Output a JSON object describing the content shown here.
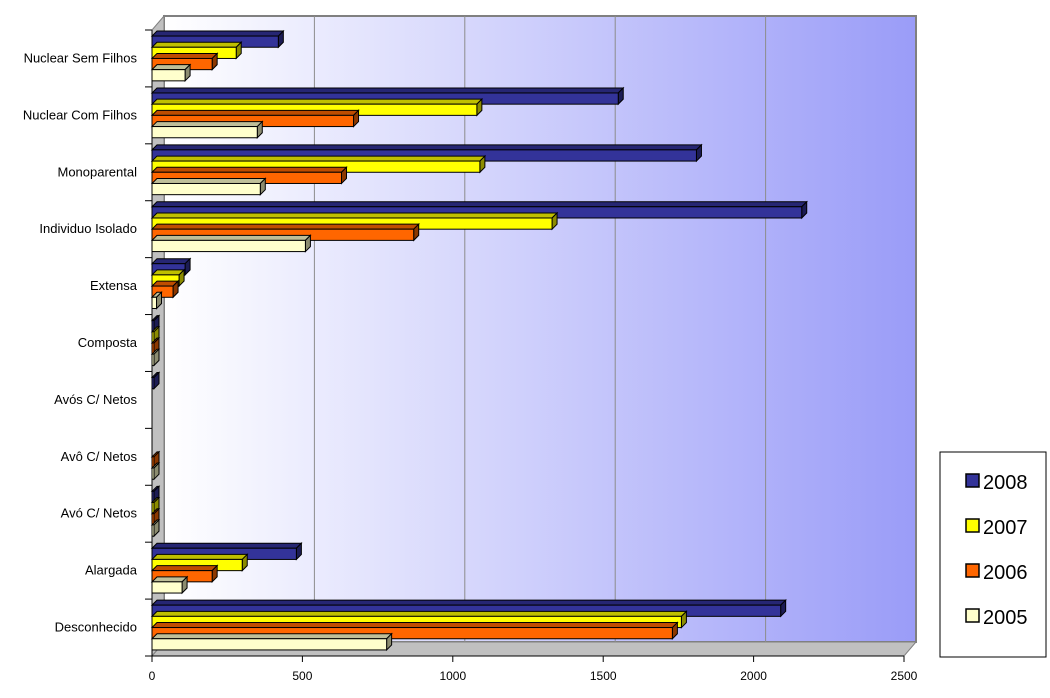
{
  "chart_data": {
    "type": "bar",
    "orientation": "horizontal",
    "style": "3d",
    "categories": [
      "Nuclear Sem Filhos",
      "Nuclear Com Filhos",
      "Monoparental",
      "Individuo Isolado",
      "Extensa",
      "Composta",
      "Avós C/ Netos",
      "Avô C/ Netos",
      "Avó C/ Netos",
      "Alargada",
      "Desconhecido"
    ],
    "series": [
      {
        "name": "2008",
        "color": "#333399",
        "values": [
          420,
          1550,
          1810,
          2160,
          110,
          5,
          5,
          0,
          5,
          480,
          2090
        ]
      },
      {
        "name": "2007",
        "color": "#FFFF00",
        "values": [
          280,
          1080,
          1090,
          1330,
          90,
          5,
          0,
          0,
          5,
          300,
          1760
        ]
      },
      {
        "name": "2006",
        "color": "#FF6600",
        "values": [
          200,
          670,
          630,
          870,
          70,
          5,
          0,
          5,
          5,
          200,
          1730
        ]
      },
      {
        "name": "2005",
        "color": "#FFFFCC",
        "values": [
          110,
          350,
          360,
          510,
          15,
          5,
          0,
          5,
          5,
          100,
          780
        ]
      }
    ],
    "xlim": [
      0,
      2500
    ],
    "xticks": [
      "0",
      "500",
      "1000",
      "1500",
      "2000",
      "2500"
    ],
    "grid": true,
    "legend_position": "right",
    "title": "",
    "xlabel": "",
    "ylabel": ""
  }
}
